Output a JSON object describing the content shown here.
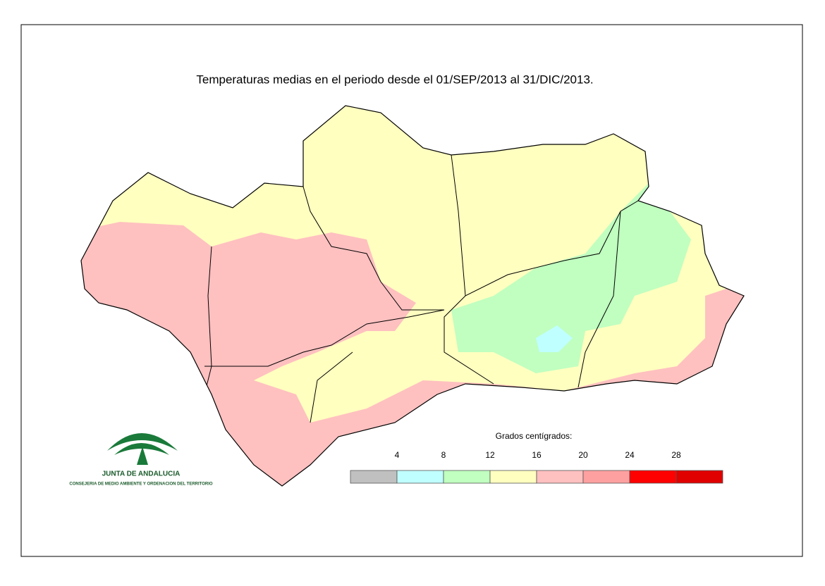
{
  "title": "Temperaturas medias en el periodo desde el 01/SEP/2013 al 31/DIC/2013.",
  "logo": {
    "name": "JUNTA DE ANDALUCIA",
    "subtitle": "CONSEJERIA DE MEDIO AMBIENTE Y ORDENACION DEL TERRITORIO"
  },
  "legend": {
    "title": "Grados centígrados:",
    "ticks": [
      4,
      8,
      12,
      16,
      20,
      24,
      28
    ],
    "colors": [
      "#c0c0c0",
      "#c0ffff",
      "#c0ffc0",
      "#ffffc0",
      "#ffc0c0",
      "#ffa0a0",
      "#ff0000",
      "#e00000"
    ]
  }
}
